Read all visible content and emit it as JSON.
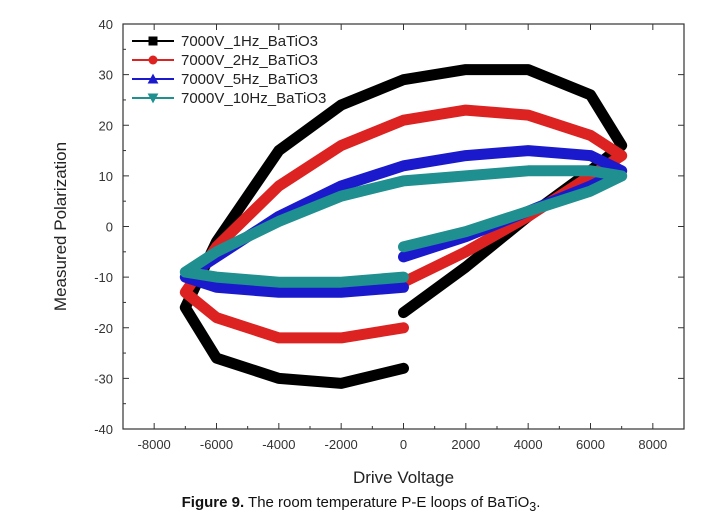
{
  "chart_data": {
    "type": "line",
    "xlabel": "Drive Voltage",
    "ylabel": "Measured Polarization",
    "xlim": [
      -9000,
      9000
    ],
    "ylim": [
      -40,
      40
    ],
    "xticks": [
      -8000,
      -6000,
      -4000,
      -2000,
      0,
      2000,
      4000,
      6000,
      8000
    ],
    "yticks": [
      -40,
      -30,
      -20,
      -10,
      0,
      10,
      20,
      30,
      40
    ],
    "legend_placement": "top-left",
    "series": [
      {
        "name": "7000V_1Hz_BaTiO3",
        "color": "#000000",
        "marker": "square",
        "points": [
          [
            0,
            -17
          ],
          [
            2000,
            -8
          ],
          [
            4000,
            2
          ],
          [
            6000,
            11
          ],
          [
            7000,
            16
          ],
          [
            6000,
            26
          ],
          [
            4000,
            31
          ],
          [
            2000,
            31
          ],
          [
            0,
            29
          ],
          [
            -2000,
            24
          ],
          [
            -4000,
            15
          ],
          [
            -6000,
            -3
          ],
          [
            -7000,
            -16
          ],
          [
            -6000,
            -26
          ],
          [
            -4000,
            -30
          ],
          [
            -2000,
            -31
          ],
          [
            0,
            -28
          ]
        ]
      },
      {
        "name": "7000V_2Hz_BaTiO3",
        "color": "#dd2222",
        "marker": "circle",
        "points": [
          [
            0,
            -11
          ],
          [
            2000,
            -5
          ],
          [
            4000,
            2
          ],
          [
            6000,
            10
          ],
          [
            7000,
            14
          ],
          [
            6000,
            18
          ],
          [
            4000,
            22
          ],
          [
            2000,
            23
          ],
          [
            0,
            21
          ],
          [
            -2000,
            16
          ],
          [
            -4000,
            8
          ],
          [
            -6000,
            -4
          ],
          [
            -7000,
            -13
          ],
          [
            -6000,
            -18
          ],
          [
            -4000,
            -22
          ],
          [
            -2000,
            -22
          ],
          [
            0,
            -20
          ]
        ]
      },
      {
        "name": "7000V_5Hz_BaTiO3",
        "color": "#1a1acc",
        "marker": "triangle",
        "points": [
          [
            0,
            -6
          ],
          [
            2000,
            -2
          ],
          [
            4000,
            3
          ],
          [
            6000,
            8
          ],
          [
            7000,
            11
          ],
          [
            6000,
            14
          ],
          [
            4000,
            15
          ],
          [
            2000,
            14
          ],
          [
            0,
            12
          ],
          [
            -2000,
            8
          ],
          [
            -4000,
            2
          ],
          [
            -6000,
            -6
          ],
          [
            -7000,
            -10
          ],
          [
            -6000,
            -12
          ],
          [
            -4000,
            -13
          ],
          [
            -2000,
            -13
          ],
          [
            0,
            -12
          ]
        ]
      },
      {
        "name": "7000V_10Hz_BaTiO3",
        "color": "#1f8f8f",
        "marker": "triangle-down",
        "points": [
          [
            0,
            -4
          ],
          [
            2000,
            -1
          ],
          [
            4000,
            3
          ],
          [
            6000,
            7
          ],
          [
            7000,
            10
          ],
          [
            6000,
            11
          ],
          [
            4000,
            11
          ],
          [
            2000,
            10
          ],
          [
            0,
            9
          ],
          [
            -2000,
            6
          ],
          [
            -4000,
            1
          ],
          [
            -6000,
            -5
          ],
          [
            -7000,
            -9
          ],
          [
            -6000,
            -10
          ],
          [
            -4000,
            -11
          ],
          [
            -2000,
            -11
          ],
          [
            0,
            -10
          ]
        ]
      }
    ]
  },
  "caption": {
    "label": "Figure 9.",
    "text": "The room temperature P-E loops of BaTiO",
    "subscript": "3",
    "end": "."
  }
}
